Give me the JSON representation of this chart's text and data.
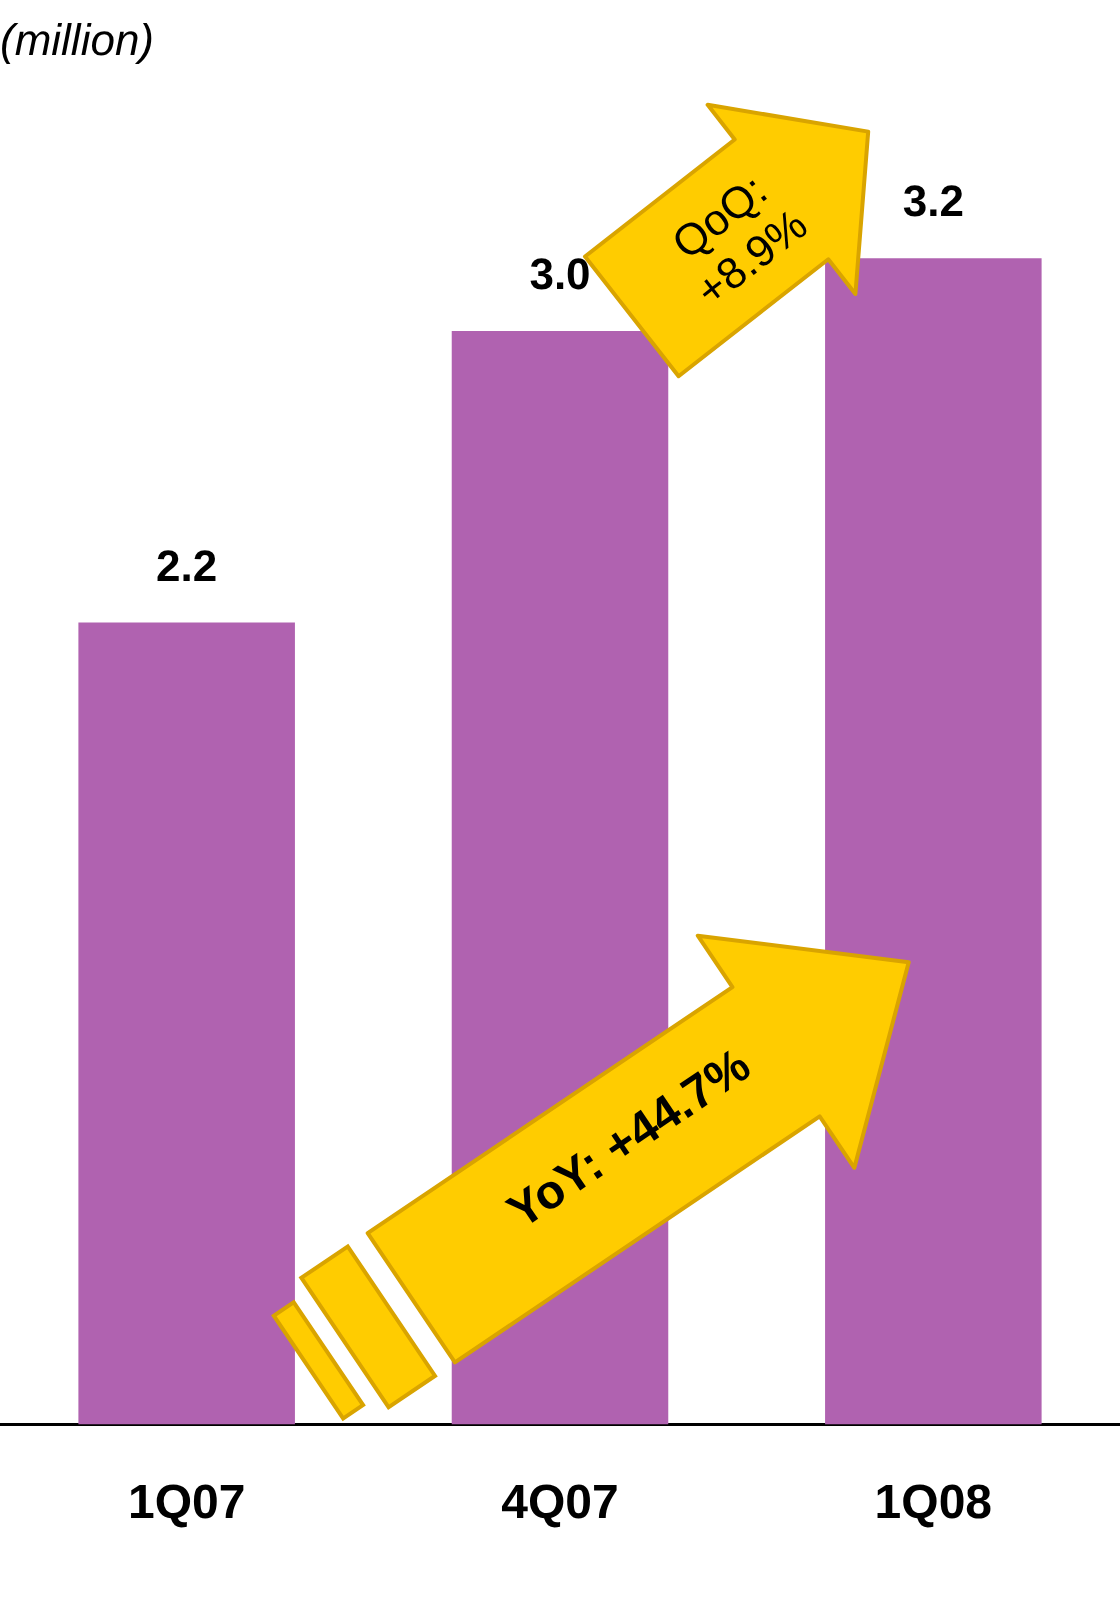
{
  "chart_data": {
    "type": "bar",
    "ylabel": "(million)",
    "categories": [
      "1Q07",
      "4Q07",
      "1Q08"
    ],
    "values": [
      2.2,
      3.0,
      3.2
    ],
    "value_labels": [
      "2.2",
      "3.0",
      "3.2"
    ],
    "color": "#b062b0",
    "annotations": [
      "QoQ: +8.9%",
      "YoY: +44.7%"
    ]
  }
}
